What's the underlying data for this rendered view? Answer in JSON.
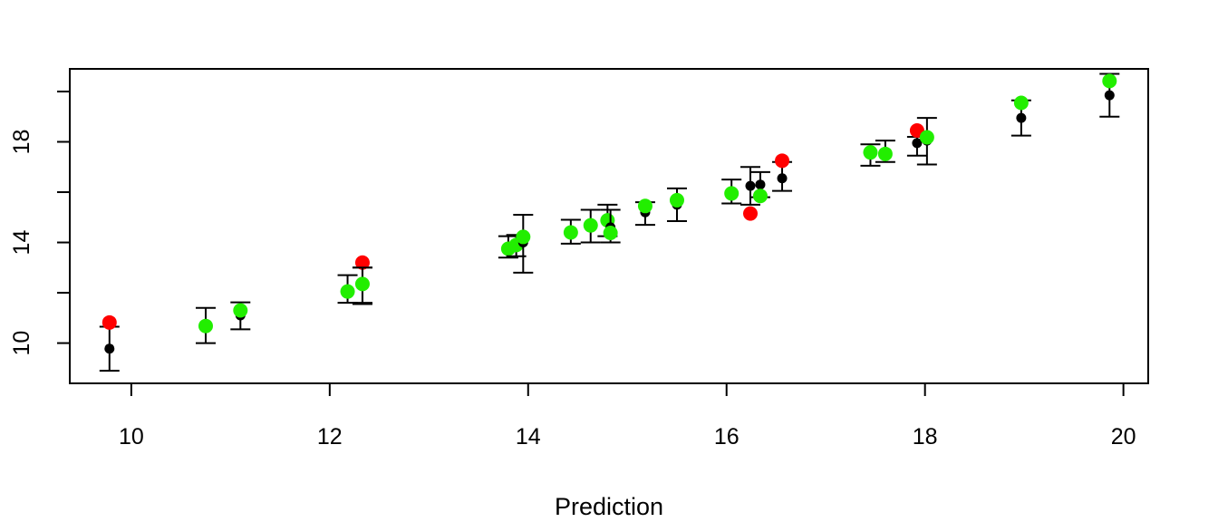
{
  "chart_data": {
    "type": "scatter",
    "xlabel": "Prediction",
    "ylabel": "",
    "xlim": [
      9.38,
      20.25
    ],
    "ylim": [
      8.4,
      20.9
    ],
    "xticks": [
      10,
      12,
      14,
      16,
      18,
      20
    ],
    "yticks": [
      10,
      14,
      18
    ],
    "minor_yticks": [
      12,
      16,
      20
    ],
    "grid": false,
    "colors": {
      "mean": "#000000",
      "observed_outside": "#ff0000",
      "observed_inside": "#22ee00"
    },
    "intervals": [
      {
        "x": 9.78,
        "mean": 9.78,
        "lo": 8.9,
        "hi": 10.65,
        "obs": 10.82,
        "inside": false
      },
      {
        "x": 10.75,
        "mean": 10.7,
        "lo": 10.0,
        "hi": 11.4,
        "obs": 10.68,
        "inside": true
      },
      {
        "x": 11.1,
        "mean": 11.1,
        "lo": 10.55,
        "hi": 11.62,
        "obs": 11.3,
        "inside": true
      },
      {
        "x": 12.18,
        "mean": 12.1,
        "lo": 11.6,
        "hi": 12.7,
        "obs": 12.05,
        "inside": true
      },
      {
        "x": 12.33,
        "mean": 12.3,
        "lo": 11.55,
        "hi": 13.0,
        "obs": 13.2,
        "inside": false
      },
      {
        "x": 12.33,
        "mean": 12.3,
        "lo": 11.6,
        "hi": 13.0,
        "obs": 12.35,
        "inside": true
      },
      {
        "x": 13.8,
        "mean": 13.8,
        "lo": 13.4,
        "hi": 14.25,
        "obs": 13.75,
        "inside": true
      },
      {
        "x": 13.88,
        "mean": 13.9,
        "lo": 13.45,
        "hi": 14.3,
        "obs": 13.9,
        "inside": true
      },
      {
        "x": 13.95,
        "mean": 14.0,
        "lo": 12.8,
        "hi": 15.1,
        "obs": 14.22,
        "inside": true
      },
      {
        "x": 14.43,
        "mean": 14.4,
        "lo": 13.95,
        "hi": 14.9,
        "obs": 14.4,
        "inside": true
      },
      {
        "x": 14.63,
        "mean": 14.6,
        "lo": 14.0,
        "hi": 15.3,
        "obs": 14.68,
        "inside": true
      },
      {
        "x": 14.8,
        "mean": 14.8,
        "lo": 14.25,
        "hi": 15.5,
        "obs": 14.88,
        "inside": true
      },
      {
        "x": 14.83,
        "mean": 14.6,
        "lo": 14.0,
        "hi": 15.3,
        "obs": 14.38,
        "inside": true
      },
      {
        "x": 15.18,
        "mean": 15.2,
        "lo": 14.7,
        "hi": 15.6,
        "obs": 15.45,
        "inside": true
      },
      {
        "x": 15.5,
        "mean": 15.5,
        "lo": 14.85,
        "hi": 16.15,
        "obs": 15.68,
        "inside": true
      },
      {
        "x": 16.05,
        "mean": 16.0,
        "lo": 15.55,
        "hi": 16.5,
        "obs": 15.95,
        "inside": true
      },
      {
        "x": 16.24,
        "mean": 16.25,
        "lo": 15.5,
        "hi": 17.0,
        "obs": 15.15,
        "inside": false
      },
      {
        "x": 16.34,
        "mean": 16.3,
        "lo": 15.8,
        "hi": 16.8,
        "obs": 15.85,
        "inside": true
      },
      {
        "x": 16.56,
        "mean": 16.55,
        "lo": 16.05,
        "hi": 17.2,
        "obs": 17.25,
        "inside": false
      },
      {
        "x": 17.45,
        "mean": 17.5,
        "lo": 17.05,
        "hi": 17.9,
        "obs": 17.58,
        "inside": true
      },
      {
        "x": 17.6,
        "mean": 17.6,
        "lo": 17.2,
        "hi": 18.05,
        "obs": 17.52,
        "inside": true
      },
      {
        "x": 17.92,
        "mean": 17.95,
        "lo": 17.45,
        "hi": 18.2,
        "obs": 18.45,
        "inside": false
      },
      {
        "x": 18.02,
        "mean": 18.05,
        "lo": 17.1,
        "hi": 18.95,
        "obs": 18.18,
        "inside": true
      },
      {
        "x": 18.97,
        "mean": 18.95,
        "lo": 18.25,
        "hi": 19.65,
        "obs": 19.55,
        "inside": true
      },
      {
        "x": 19.86,
        "mean": 19.85,
        "lo": 19.0,
        "hi": 20.7,
        "obs": 20.42,
        "inside": true
      }
    ]
  }
}
